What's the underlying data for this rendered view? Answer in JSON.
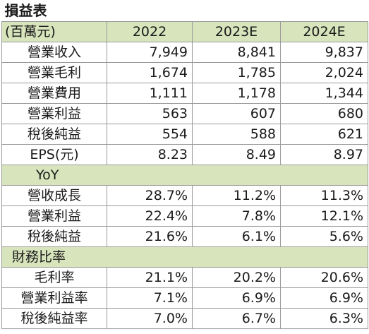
{
  "title": "損益表",
  "header": {
    "unit": "(百萬元)",
    "years": [
      "2022",
      "2023E",
      "2024E"
    ]
  },
  "income": [
    {
      "label": "營業收入",
      "values": [
        "7,949",
        "8,841",
        "9,837"
      ]
    },
    {
      "label": "營業毛利",
      "values": [
        "1,674",
        "1,785",
        "2,024"
      ]
    },
    {
      "label": "營業費用",
      "values": [
        "1,111",
        "1,178",
        "1,344"
      ]
    },
    {
      "label": "營業利益",
      "values": [
        "563",
        "607",
        "680"
      ]
    },
    {
      "label": "稅後純益",
      "values": [
        "554",
        "588",
        "621"
      ]
    },
    {
      "label": "EPS(元)",
      "values": [
        "8.23",
        "8.49",
        "8.97"
      ]
    }
  ],
  "yoy_title": "YoY",
  "yoy": [
    {
      "label": "營收成長",
      "values": [
        "28.7%",
        "11.2%",
        "11.3%"
      ]
    },
    {
      "label": "營業利益",
      "values": [
        "22.4%",
        "7.8%",
        "12.1%"
      ]
    },
    {
      "label": "稅後純益",
      "values": [
        "21.6%",
        "6.1%",
        "5.6%"
      ]
    }
  ],
  "ratio_title": "財務比率",
  "ratios": [
    {
      "label": "毛利率",
      "values": [
        "21.1%",
        "20.2%",
        "20.6%"
      ]
    },
    {
      "label": "營業利益率",
      "values": [
        "7.1%",
        "6.9%",
        "6.9%"
      ]
    },
    {
      "label": "稅後純益率",
      "values": [
        "7.0%",
        "6.7%",
        "6.3%"
      ]
    }
  ]
}
